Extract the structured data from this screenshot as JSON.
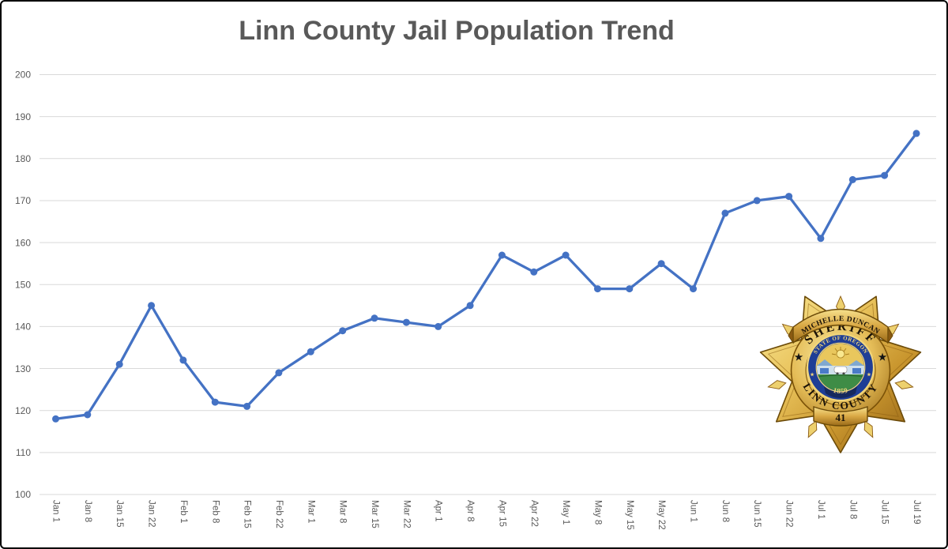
{
  "chart_data": {
    "type": "line",
    "title": "Linn County Jail Population Trend",
    "categories": [
      "Jan 1",
      "Jan 8",
      "Jan 15",
      "Jan 22",
      "Feb 1",
      "Feb 8",
      "Feb 15",
      "Feb 22",
      "Mar 1",
      "Mar 8",
      "Mar 15",
      "Mar 22",
      "Apr 1",
      "Apr 8",
      "Apr 15",
      "Apr 22",
      "May 1",
      "May 8",
      "May 15",
      "May 22",
      "Jun 1",
      "Jun 8",
      "Jun 15",
      "Jun 22",
      "Jul 1",
      "Jul 8",
      "Jul 15",
      "Jul 19"
    ],
    "values": [
      118,
      119,
      131,
      145,
      132,
      122,
      121,
      129,
      134,
      139,
      142,
      141,
      140,
      145,
      157,
      153,
      157,
      149,
      149,
      155,
      149,
      167,
      170,
      171,
      161,
      175,
      176,
      186
    ],
    "xlabel": "",
    "ylabel": "",
    "ylim": [
      100,
      200
    ],
    "yticks": [
      200,
      190,
      180,
      170,
      160,
      150,
      140,
      130,
      120,
      110,
      100
    ],
    "grid": "horizontal",
    "legend": "none",
    "x_label_rotation_deg": 90,
    "colors": {
      "line": "#4472C4",
      "marker": "#4472C4",
      "gridline": "#D9D9D9",
      "tick_label": "#595959",
      "title": "#595959",
      "background": "#FFFFFF",
      "frame_border": "#000000"
    }
  },
  "badge": {
    "name_banner": "MICHELLE DUNCAN",
    "title": "SHERIFF",
    "seal_top": "STATE OF OREGON",
    "seal_year": "1859",
    "county": "LINN COUNTY",
    "badge_number": "41",
    "star_glyph": "★",
    "colors": {
      "gold_light": "#F9E896",
      "gold_mid": "#DDA93C",
      "gold_dark": "#8A5A12",
      "outline": "#6B4A08",
      "seal_blue": "#1F3E96",
      "seal_gold_text": "#F2D67A",
      "scene_sky": "#E9C75D",
      "scene_green": "#3E8C46",
      "text_black": "#1A1208"
    }
  }
}
